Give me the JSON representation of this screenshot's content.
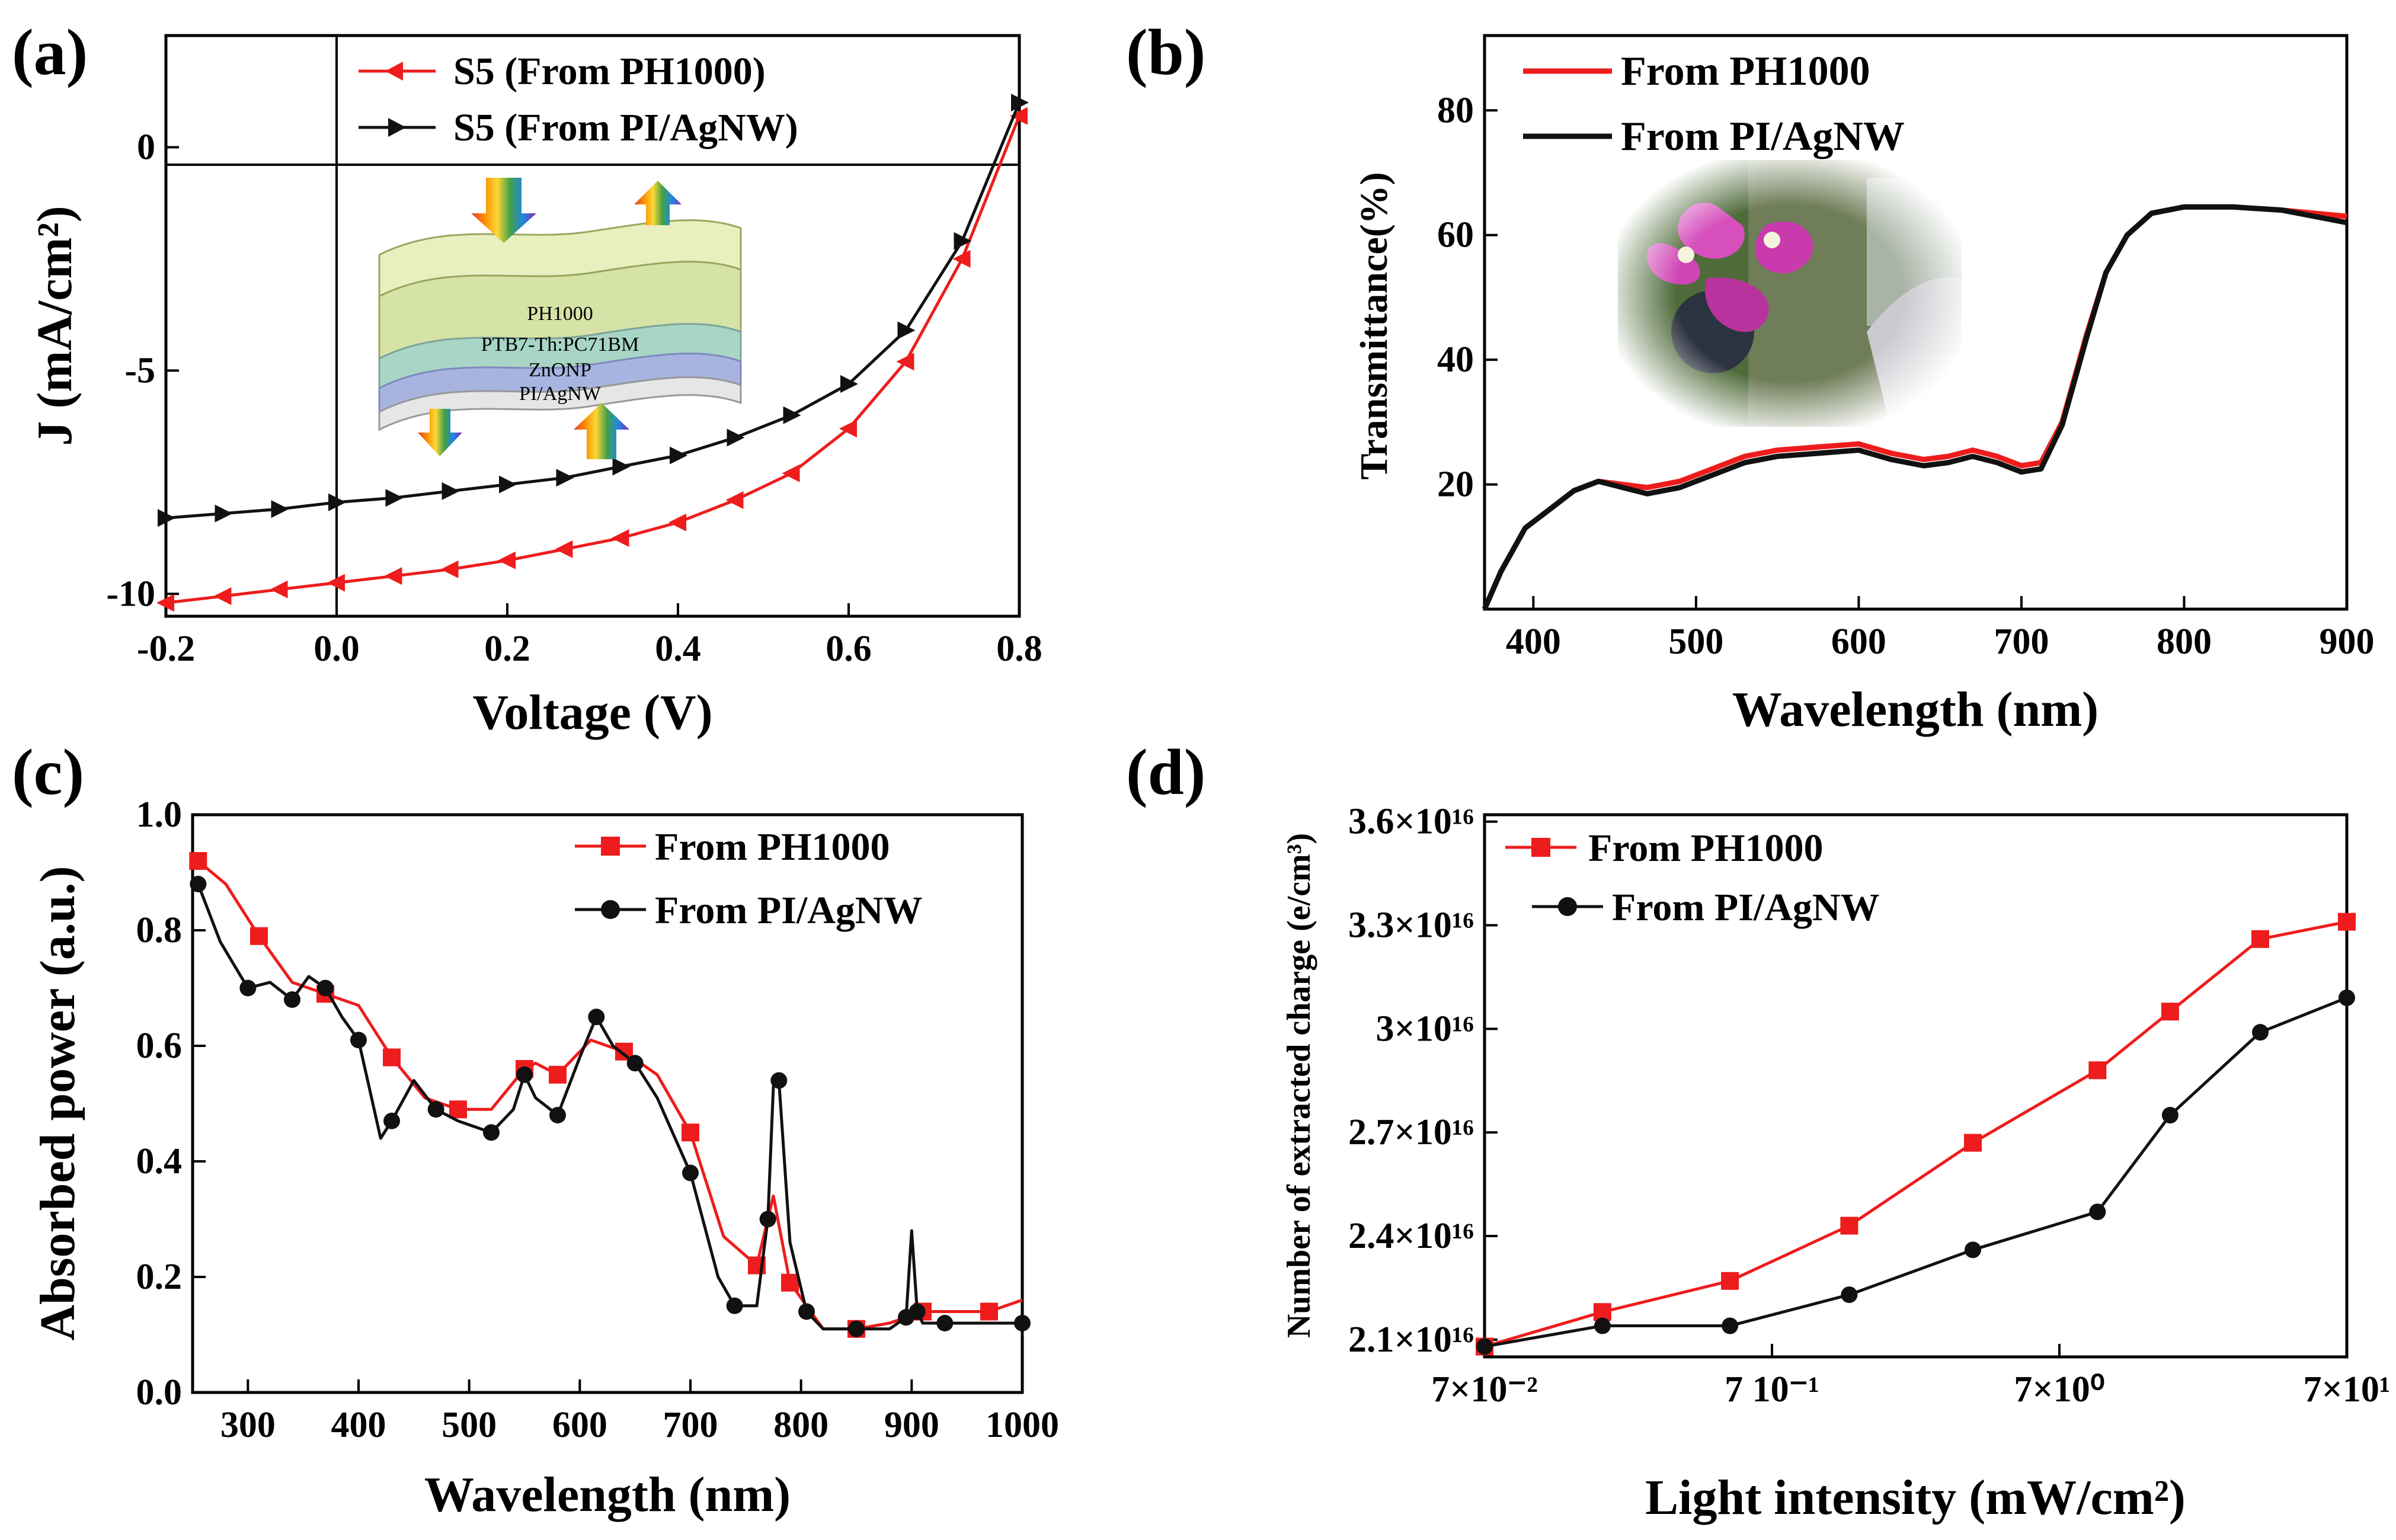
{
  "figure": {
    "panel_labels": [
      "(a)",
      "(b)",
      "(c)",
      "(d)"
    ],
    "inset_a_layers": [
      "PH1000",
      "PTB7-Th:PC71BM",
      "ZnONP",
      "PI/AgNW"
    ],
    "inset_b_photo": "flower-photo"
  },
  "colors": {
    "red": "#ee1c1c",
    "black": "#111111"
  },
  "chart_data": [
    {
      "panel": "(a)",
      "type": "line",
      "xlabel": "Voltage (V)",
      "ylabel": "J (mA/cm²)",
      "xlim": [
        -0.2,
        0.8
      ],
      "ylim": [
        -10.5,
        2.5
      ],
      "xticks": [
        -0.2,
        0.0,
        0.2,
        0.4,
        0.6,
        0.8
      ],
      "xtick_labels": [
        "-0.2",
        "0.0",
        "0.2",
        "0.4",
        "0.6",
        "0.8"
      ],
      "yticks": [
        0,
        -5,
        -10
      ],
      "ytick_labels": [
        "0",
        "-5",
        "-10"
      ],
      "legend": [
        "S5 (From PH1000)",
        "S5 (From PI/AgNW)"
      ],
      "series": [
        {
          "name": "S5 (From PH1000)",
          "color": "#ee1c1c",
          "marker": "left-triangle",
          "x": [
            -0.2,
            -0.133,
            -0.067,
            0.0,
            0.067,
            0.133,
            0.2,
            0.267,
            0.333,
            0.4,
            0.467,
            0.533,
            0.6,
            0.667,
            0.733,
            0.8
          ],
          "y": [
            -10.2,
            -10.05,
            -9.9,
            -9.75,
            -9.6,
            -9.45,
            -9.25,
            -9.0,
            -8.75,
            -8.4,
            -7.9,
            -7.3,
            -6.3,
            -4.8,
            -2.5,
            0.7
          ]
        },
        {
          "name": "S5 (From PI/AgNW)",
          "color": "#111111",
          "marker": "right-triangle",
          "x": [
            -0.2,
            -0.133,
            -0.067,
            0.0,
            0.067,
            0.133,
            0.2,
            0.267,
            0.333,
            0.4,
            0.467,
            0.533,
            0.6,
            0.667,
            0.733,
            0.8
          ],
          "y": [
            -8.3,
            -8.2,
            -8.1,
            -7.95,
            -7.85,
            -7.7,
            -7.55,
            -7.4,
            -7.15,
            -6.9,
            -6.5,
            -6.0,
            -5.3,
            -4.1,
            -2.1,
            1.0
          ]
        }
      ]
    },
    {
      "panel": "(b)",
      "type": "line",
      "xlabel": "Wavelength (nm)",
      "ylabel": "Transmittance(%)",
      "xlim": [
        370,
        900
      ],
      "ylim": [
        0,
        92
      ],
      "xticks": [
        400,
        500,
        600,
        700,
        800,
        900
      ],
      "yticks": [
        20,
        40,
        60,
        80
      ],
      "legend": [
        "From PH1000",
        "From PI/AgNW"
      ],
      "series": [
        {
          "name": "From PH1000",
          "color": "#ee1c1c",
          "x": [
            370,
            380,
            395,
            410,
            425,
            440,
            455,
            470,
            490,
            510,
            530,
            550,
            575,
            600,
            620,
            640,
            655,
            670,
            685,
            700,
            712,
            725,
            740,
            752,
            765,
            780,
            800,
            830,
            860,
            900
          ],
          "y": [
            0,
            6,
            13,
            16,
            19,
            20.5,
            20,
            19.5,
            20.5,
            22.5,
            24.5,
            25.5,
            26,
            26.5,
            25,
            24,
            24.5,
            25.5,
            24.5,
            23,
            23.5,
            30,
            44,
            54,
            60,
            63.5,
            64.5,
            64.5,
            64,
            63
          ]
        },
        {
          "name": "From PI/AgNW",
          "color": "#111111",
          "x": [
            370,
            380,
            395,
            410,
            425,
            440,
            455,
            470,
            490,
            510,
            530,
            550,
            575,
            600,
            620,
            640,
            655,
            670,
            685,
            700,
            712,
            725,
            740,
            752,
            765,
            780,
            800,
            830,
            860,
            900
          ],
          "y": [
            0,
            6,
            13,
            16,
            19,
            20.5,
            19.5,
            18.5,
            19.5,
            21.5,
            23.5,
            24.5,
            25,
            25.5,
            24,
            23,
            23.5,
            24.5,
            23.5,
            22,
            22.5,
            29.5,
            43.5,
            54,
            60,
            63.5,
            64.5,
            64.5,
            64,
            62
          ]
        }
      ]
    },
    {
      "panel": "(c)",
      "type": "line",
      "xlabel": "Wavelength (nm)",
      "ylabel": "Absorbed power (a.u.)",
      "xlim": [
        250,
        1000
      ],
      "ylim": [
        0,
        1.0
      ],
      "xticks": [
        300,
        400,
        500,
        600,
        700,
        800,
        900,
        1000
      ],
      "yticks": [
        0.0,
        0.2,
        0.4,
        0.6,
        0.8,
        1.0
      ],
      "ytick_labels": [
        "0.0",
        "0.2",
        "0.4",
        "0.6",
        "0.8",
        "1.0"
      ],
      "legend": [
        "From PH1000",
        "From PI/AgNW"
      ],
      "series": [
        {
          "name": "From PH1000",
          "color": "#ee1c1c",
          "marker": "square",
          "x": [
            255,
            280,
            310,
            340,
            370,
            400,
            430,
            460,
            490,
            520,
            550,
            560,
            580,
            610,
            640,
            670,
            700,
            730,
            760,
            775,
            790,
            820,
            850,
            880,
            910,
            940,
            970,
            1000
          ],
          "y": [
            0.92,
            0.88,
            0.79,
            0.71,
            0.69,
            0.67,
            0.58,
            0.51,
            0.49,
            0.49,
            0.56,
            0.57,
            0.55,
            0.61,
            0.59,
            0.55,
            0.45,
            0.27,
            0.22,
            0.34,
            0.19,
            0.11,
            0.11,
            0.12,
            0.14,
            0.14,
            0.14,
            0.16
          ]
        },
        {
          "name": "From PI/AgNW",
          "color": "#111111",
          "marker": "circle",
          "x": [
            255,
            275,
            300,
            320,
            340,
            355,
            370,
            385,
            400,
            420,
            430,
            450,
            470,
            490,
            520,
            540,
            550,
            560,
            580,
            600,
            615,
            630,
            650,
            670,
            700,
            725,
            740,
            760,
            770,
            775,
            780,
            790,
            805,
            820,
            850,
            880,
            895,
            900,
            905,
            910,
            930,
            960,
            1000
          ],
          "y": [
            0.88,
            0.78,
            0.7,
            0.71,
            0.68,
            0.72,
            0.7,
            0.65,
            0.61,
            0.44,
            0.47,
            0.54,
            0.49,
            0.47,
            0.45,
            0.49,
            0.55,
            0.51,
            0.48,
            0.58,
            0.65,
            0.6,
            0.57,
            0.51,
            0.38,
            0.2,
            0.15,
            0.15,
            0.3,
            0.53,
            0.54,
            0.26,
            0.14,
            0.11,
            0.11,
            0.11,
            0.13,
            0.28,
            0.14,
            0.12,
            0.12,
            0.12,
            0.12
          ]
        }
      ]
    },
    {
      "panel": "(d)",
      "type": "line",
      "xscale": "log",
      "xlabel": "Light intensity (mW/cm²)",
      "ylabel": "Number of extracted charge (e/cm³)",
      "xlim": [
        0.07,
        70
      ],
      "ylim": [
        2.05e+16,
        3.62e+16
      ],
      "xticks": [
        0.07,
        0.7,
        7,
        70
      ],
      "xtick_labels": [
        "7×10⁻²",
        "7 10⁻¹",
        "7×10⁰",
        "7×10¹"
      ],
      "yticks": [
        2.1e+16,
        2.4e+16,
        2.7e+16,
        3e+16,
        3.3e+16,
        3.6e+16
      ],
      "ytick_labels": [
        "2.1×10¹⁶",
        "2.4×10¹⁶",
        "2.7×10¹⁶",
        "3×10¹⁶",
        "3.3×10¹⁶",
        "3.6×10¹⁶"
      ],
      "legend": [
        "From PH1000",
        "From PI/AgNW"
      ],
      "series": [
        {
          "name": "From PH1000",
          "color": "#ee1c1c",
          "marker": "square",
          "x": [
            0.07,
            0.18,
            0.5,
            1.3,
            3.5,
            9.5,
            17,
            35,
            70
          ],
          "y": [
            2.08e+16,
            2.18e+16,
            2.27e+16,
            2.43e+16,
            2.67e+16,
            2.88e+16,
            3.05e+16,
            3.26e+16,
            3.31e+16
          ]
        },
        {
          "name": "From PI/AgNW",
          "color": "#111111",
          "marker": "circle",
          "x": [
            0.07,
            0.18,
            0.5,
            1.3,
            3.5,
            9.5,
            17,
            35,
            70
          ],
          "y": [
            2.08e+16,
            2.14e+16,
            2.14e+16,
            2.23e+16,
            2.36e+16,
            2.47e+16,
            2.75e+16,
            2.99e+16,
            3.09e+16
          ]
        }
      ]
    }
  ]
}
